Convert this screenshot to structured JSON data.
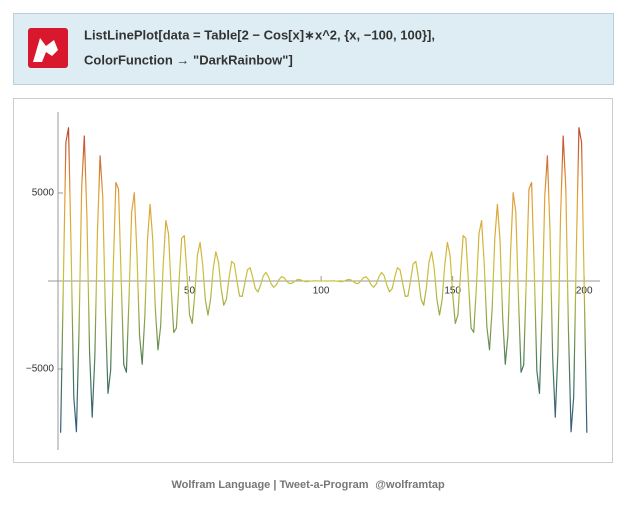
{
  "code": {
    "lines": [
      "ListLinePlot[data  =  Table[2  −  Cos[x]∗x^2,  {x,  −100,  100}],",
      "ColorFunction  →  \"DarkRainbow\"]"
    ]
  },
  "chart_data": {
    "type": "line",
    "x": [
      1,
      2,
      3,
      4,
      5,
      6,
      7,
      8,
      9,
      10,
      11,
      12,
      13,
      14,
      15,
      16,
      17,
      18,
      19,
      20,
      21,
      22,
      23,
      24,
      25,
      26,
      27,
      28,
      29,
      30,
      31,
      32,
      33,
      34,
      35,
      36,
      37,
      38,
      39,
      40,
      41,
      42,
      43,
      44,
      45,
      46,
      47,
      48,
      49,
      50,
      51,
      52,
      53,
      54,
      55,
      56,
      57,
      58,
      59,
      60,
      61,
      62,
      63,
      64,
      65,
      66,
      67,
      68,
      69,
      70,
      71,
      72,
      73,
      74,
      75,
      76,
      77,
      78,
      79,
      80,
      81,
      82,
      83,
      84,
      85,
      86,
      87,
      88,
      89,
      90,
      91,
      92,
      93,
      94,
      95,
      96,
      97,
      98,
      99,
      100,
      101,
      102,
      103,
      104,
      105,
      106,
      107,
      108,
      109,
      110,
      111,
      112,
      113,
      114,
      115,
      116,
      117,
      118,
      119,
      120,
      121,
      122,
      123,
      124,
      125,
      126,
      127,
      128,
      129,
      130,
      131,
      132,
      133,
      134,
      135,
      136,
      137,
      138,
      139,
      140,
      141,
      142,
      143,
      144,
      145,
      146,
      147,
      148,
      149,
      150,
      151,
      152,
      153,
      154,
      155,
      156,
      157,
      158,
      159,
      160,
      161,
      162,
      163,
      164,
      165,
      166,
      167,
      168,
      169,
      170,
      171,
      172,
      173,
      174,
      175,
      176,
      177,
      178,
      179,
      180,
      181,
      182,
      183,
      184,
      185,
      186,
      187,
      188,
      189,
      190,
      191,
      192,
      193,
      194,
      195,
      196,
      197,
      198,
      199,
      200,
      201
    ],
    "values": [
      -8621,
      -388,
      7871,
      8707,
      1665,
      -6588,
      -8564,
      -2743,
      5304,
      8238,
      3632,
      -4039,
      -7738,
      -4311,
      2840,
      7112,
      4800,
      -1716,
      -6383,
      -5093,
      709,
      5594,
      5221,
      186,
      -4759,
      -5183,
      -938,
      3925,
      5016,
      1560,
      -3101,
      -4728,
      -2033,
      2326,
      4357,
      2379,
      -1603,
      -3911,
      -2587,
      962,
      3431,
      2686,
      -399,
      -2922,
      -2674,
      -65,
      2420,
      2582,
      443,
      -1929,
      -2411,
      -720,
      1477,
      2194,
      917,
      -1062,
      -1934,
      -1024,
      707,
      1662,
      1069,
      -404,
      -1377,
      -1046,
      168,
      1109,
      983,
      17,
      -852,
      -877,
      -137,
      631,
      757,
      215,
      -435,
      -618,
      -242,
      284,
      486,
      244,
      -161,
      -355,
      -212,
      82,
      247,
      173,
      -25,
      -151,
      -120,
      1,
      86,
      76,
      11,
      -35,
      -33,
      -5,
      12,
      11,
      4,
      1,
      2,
      1,
      4,
      11,
      12,
      -5,
      -33,
      -35,
      11,
      76,
      86,
      1,
      -120,
      -151,
      -25,
      173,
      247,
      82,
      -212,
      -355,
      -161,
      244,
      486,
      284,
      -242,
      -618,
      -435,
      215,
      757,
      631,
      -137,
      -877,
      -852,
      17,
      983,
      1109,
      168,
      -1046,
      -1377,
      -404,
      1069,
      1662,
      707,
      -1024,
      -1934,
      -1062,
      917,
      2194,
      1477,
      -720,
      -2411,
      -1929,
      443,
      2582,
      2420,
      -65,
      -2674,
      -2922,
      -399,
      2686,
      3431,
      962,
      -2587,
      -3911,
      -1603,
      2379,
      4357,
      2326,
      -2033,
      -4728,
      -3101,
      1560,
      5016,
      3925,
      -938,
      -5183,
      -4759,
      186,
      5221,
      5594,
      709,
      -5093,
      -6383,
      -1716,
      4800,
      7112,
      2840,
      -4311,
      -7738,
      -4039,
      3632,
      8238,
      5304,
      -2743,
      -8564,
      -6588,
      1665,
      8707,
      7871,
      -388,
      -8621
    ],
    "color_scale": [
      "#2f4f8f",
      "#4a7d5a",
      "#c9c23a",
      "#e0a03a",
      "#b8302a"
    ],
    "xlim": [
      0,
      206
    ],
    "ylim": [
      -9600,
      9600
    ],
    "xticks": [
      50,
      100,
      150,
      200
    ],
    "yticks": [
      {
        "value": -5000,
        "label": "−5000"
      },
      5000
    ]
  },
  "footer": {
    "left": "Wolfram Language | Tweet-a-Program",
    "right": "@wolframtap"
  }
}
